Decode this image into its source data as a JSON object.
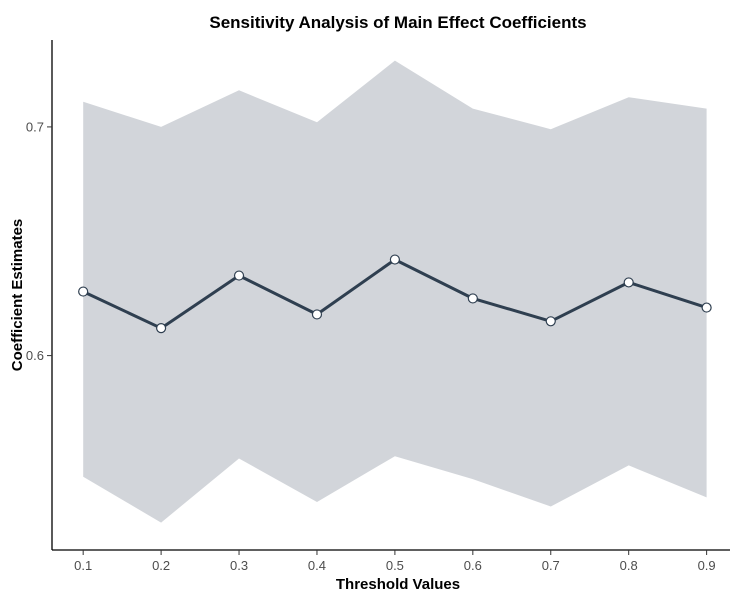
{
  "chart_data": {
    "type": "line",
    "title": "Sensitivity Analysis of Main Effect Coefficients",
    "xlabel": "Threshold Values",
    "ylabel": "Coefficient Estimates",
    "x": [
      0.1,
      0.2,
      0.3,
      0.4,
      0.5,
      0.6,
      0.7,
      0.8,
      0.9
    ],
    "x_tick_labels": [
      "0.1",
      "0.2",
      "0.3",
      "0.4",
      "0.5",
      "0.6",
      "0.7",
      "0.8",
      "0.9"
    ],
    "y_ticks": [
      0.6,
      0.7
    ],
    "y_tick_labels": [
      "0.6",
      "0.7"
    ],
    "xlim": [
      0.06,
      0.93
    ],
    "ylim": [
      0.515,
      0.738
    ],
    "series": [
      {
        "values": [
          0.628,
          0.612,
          0.635,
          0.618,
          0.642,
          0.625,
          0.615,
          0.632,
          0.621
        ],
        "lower": [
          0.547,
          0.527,
          0.555,
          0.536,
          0.556,
          0.546,
          0.534,
          0.552,
          0.538
        ],
        "upper": [
          0.711,
          0.7,
          0.716,
          0.702,
          0.729,
          0.708,
          0.699,
          0.713,
          0.708
        ]
      }
    ],
    "grid": false,
    "legend": "none",
    "colors": {
      "line": "#2f3f50",
      "ribbon": "#d2d5da",
      "point_fill": "#ffffff",
      "point_stroke": "#2f3f50",
      "axis": "#000000"
    }
  }
}
